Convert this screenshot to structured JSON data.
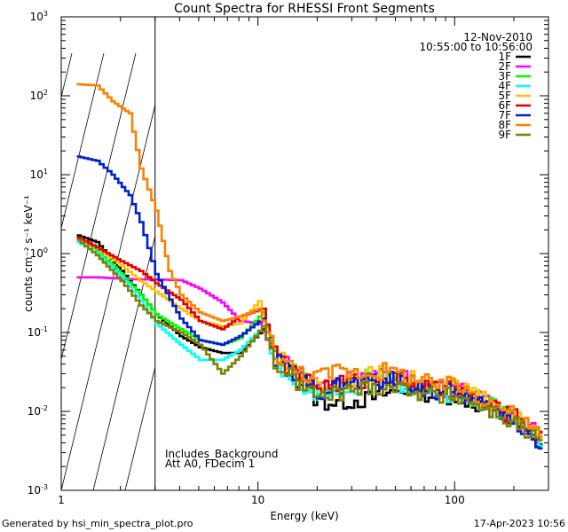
{
  "chart_data": {
    "type": "line",
    "title": "Count Spectra for RHESSI Front Segments",
    "date": "12-Nov-2010",
    "time_range": "10:55:00 to 10:56:00",
    "xlabel": "Energy (keV)",
    "ylabel": "counts cm⁻² s⁻¹ keV⁻¹",
    "xscale": "log",
    "yscale": "log",
    "xlim": [
      1,
      300
    ],
    "ylim": [
      0.001,
      1000
    ],
    "x_ticks": [
      {
        "v": 1,
        "label": "1"
      },
      {
        "v": 10,
        "label": "10"
      },
      {
        "v": 100,
        "label": "100"
      }
    ],
    "y_ticks": [
      {
        "v": 0.001,
        "base": "10",
        "exp": "-3"
      },
      {
        "v": 0.01,
        "base": "10",
        "exp": "-2"
      },
      {
        "v": 0.1,
        "base": "10",
        "exp": "-1"
      },
      {
        "v": 1,
        "base": "10",
        "exp": "0"
      },
      {
        "v": 10,
        "base": "10",
        "exp": "1"
      },
      {
        "v": 100,
        "base": "10",
        "exp": "2"
      },
      {
        "v": 1000,
        "base": "10",
        "exp": "3"
      }
    ],
    "hatch_region": {
      "xmin": 1,
      "xmax": 3
    },
    "annotation_lines": [
      "Includes_Background",
      "Att A0, FDecim 1"
    ],
    "legend_position": "top-right",
    "series": [
      {
        "name": "1F",
        "color": "#000000",
        "offset": 0.005,
        "points": [
          [
            1.2,
            1.7
          ],
          [
            1.5,
            1.4
          ],
          [
            2.0,
            0.6
          ],
          [
            2.5,
            0.3
          ],
          [
            3.0,
            0.17
          ],
          [
            4.0,
            0.09
          ],
          [
            5.0,
            0.065
          ],
          [
            6.5,
            0.055
          ],
          [
            8.0,
            0.055
          ],
          [
            10.5,
            0.11
          ],
          [
            12.0,
            0.045
          ],
          [
            15.0,
            0.028
          ],
          [
            20.0,
            0.013
          ],
          [
            25.0,
            0.013
          ],
          [
            35.0,
            0.014
          ],
          [
            45.0,
            0.017
          ],
          [
            60.0,
            0.019
          ],
          [
            80.0,
            0.015
          ],
          [
            100.0,
            0.016
          ],
          [
            150.0,
            0.01
          ],
          [
            200.0,
            0.007
          ],
          [
            280.0,
            0.0035
          ]
        ]
      },
      {
        "name": "2F",
        "color": "#ff00ff",
        "offset": 0.035,
        "points": [
          [
            1.2,
            0.5
          ],
          [
            1.5,
            0.5
          ],
          [
            2.0,
            0.48
          ],
          [
            2.5,
            0.47
          ],
          [
            3.0,
            0.47
          ],
          [
            4.0,
            0.46
          ],
          [
            5.0,
            0.36
          ],
          [
            6.5,
            0.24
          ],
          [
            8.0,
            0.14
          ],
          [
            10.0,
            0.13
          ],
          [
            12.0,
            0.05
          ],
          [
            15.0,
            0.03
          ],
          [
            20.0,
            0.02
          ],
          [
            25.0,
            0.023
          ],
          [
            35.0,
            0.026
          ],
          [
            45.0,
            0.025
          ],
          [
            60.0,
            0.023
          ],
          [
            80.0,
            0.017
          ],
          [
            100.0,
            0.019
          ],
          [
            150.0,
            0.011
          ],
          [
            200.0,
            0.008
          ],
          [
            280.0,
            0.004
          ]
        ]
      },
      {
        "name": "3F",
        "color": "#00ff00",
        "offset": 0.025,
        "points": [
          [
            1.2,
            1.6
          ],
          [
            1.5,
            1.1
          ],
          [
            2.0,
            0.55
          ],
          [
            2.5,
            0.3
          ],
          [
            3.0,
            0.17
          ],
          [
            4.0,
            0.11
          ],
          [
            5.0,
            0.08
          ],
          [
            6.5,
            0.07
          ],
          [
            8.0,
            0.085
          ],
          [
            10.5,
            0.18
          ],
          [
            12.0,
            0.05
          ],
          [
            15.0,
            0.03
          ],
          [
            20.0,
            0.018
          ],
          [
            25.0,
            0.02
          ],
          [
            35.0,
            0.024
          ],
          [
            45.0,
            0.025
          ],
          [
            60.0,
            0.022
          ],
          [
            80.0,
            0.017
          ],
          [
            100.0,
            0.018
          ],
          [
            150.0,
            0.011
          ],
          [
            200.0,
            0.008
          ],
          [
            280.0,
            0.004
          ]
        ]
      },
      {
        "name": "4F",
        "color": "#00ffff",
        "offset": 0.01,
        "points": [
          [
            1.2,
            1.4
          ],
          [
            1.5,
            1.0
          ],
          [
            2.0,
            0.5
          ],
          [
            2.5,
            0.25
          ],
          [
            3.0,
            0.13
          ],
          [
            4.0,
            0.07
          ],
          [
            5.0,
            0.045
          ],
          [
            6.5,
            0.045
          ],
          [
            8.0,
            0.06
          ],
          [
            10.5,
            0.12
          ],
          [
            12.0,
            0.04
          ],
          [
            15.0,
            0.025
          ],
          [
            20.0,
            0.016
          ],
          [
            25.0,
            0.018
          ],
          [
            35.0,
            0.021
          ],
          [
            45.0,
            0.022
          ],
          [
            60.0,
            0.02
          ],
          [
            80.0,
            0.016
          ],
          [
            100.0,
            0.017
          ],
          [
            150.0,
            0.01
          ],
          [
            200.0,
            0.007
          ],
          [
            280.0,
            0.0035
          ]
        ]
      },
      {
        "name": "5F",
        "color": "#ffc000",
        "offset": 0.03,
        "points": [
          [
            1.2,
            1.5
          ],
          [
            1.5,
            1.2
          ],
          [
            2.0,
            0.7
          ],
          [
            2.5,
            0.45
          ],
          [
            3.0,
            0.33
          ],
          [
            4.0,
            0.2
          ],
          [
            5.0,
            0.14
          ],
          [
            6.5,
            0.12
          ],
          [
            8.0,
            0.13
          ],
          [
            10.0,
            0.25
          ],
          [
            12.0,
            0.05
          ],
          [
            15.0,
            0.03
          ],
          [
            20.0,
            0.02
          ],
          [
            25.0,
            0.022
          ],
          [
            35.0,
            0.026
          ],
          [
            45.0,
            0.028
          ],
          [
            60.0,
            0.024
          ],
          [
            80.0,
            0.019
          ],
          [
            100.0,
            0.02
          ],
          [
            150.0,
            0.012
          ],
          [
            200.0,
            0.008
          ],
          [
            280.0,
            0.004
          ]
        ]
      },
      {
        "name": "6F",
        "color": "#e00000",
        "offset": 0.015,
        "points": [
          [
            1.2,
            1.6
          ],
          [
            1.5,
            1.2
          ],
          [
            2.0,
            0.8
          ],
          [
            2.5,
            0.6
          ],
          [
            3.0,
            0.42
          ],
          [
            4.0,
            0.26
          ],
          [
            5.0,
            0.14
          ],
          [
            6.5,
            0.11
          ],
          [
            8.0,
            0.16
          ],
          [
            10.5,
            0.2
          ],
          [
            12.0,
            0.05
          ],
          [
            15.0,
            0.03
          ],
          [
            20.0,
            0.02
          ],
          [
            25.0,
            0.022
          ],
          [
            35.0,
            0.024
          ],
          [
            45.0,
            0.026
          ],
          [
            60.0,
            0.022
          ],
          [
            80.0,
            0.018
          ],
          [
            100.0,
            0.018
          ],
          [
            150.0,
            0.011
          ],
          [
            200.0,
            0.008
          ],
          [
            280.0,
            0.004
          ]
        ]
      },
      {
        "name": "7F",
        "color": "#0020d0",
        "offset": 0.02,
        "points": [
          [
            1.2,
            17
          ],
          [
            1.5,
            15
          ],
          [
            1.8,
            10
          ],
          [
            2.2,
            5.5
          ],
          [
            2.5,
            2.5
          ],
          [
            3.0,
            0.55
          ],
          [
            4.0,
            0.15
          ],
          [
            5.0,
            0.08
          ],
          [
            6.5,
            0.07
          ],
          [
            8.0,
            0.09
          ],
          [
            10.5,
            0.15
          ],
          [
            12.0,
            0.045
          ],
          [
            15.0,
            0.028
          ],
          [
            20.0,
            0.017
          ],
          [
            25.0,
            0.02
          ],
          [
            35.0,
            0.023
          ],
          [
            45.0,
            0.024
          ],
          [
            60.0,
            0.021
          ],
          [
            80.0,
            0.016
          ],
          [
            100.0,
            0.017
          ],
          [
            150.0,
            0.01
          ],
          [
            200.0,
            0.007
          ],
          [
            280.0,
            0.0035
          ]
        ]
      },
      {
        "name": "8F",
        "color": "#ff8000",
        "offset": 0.04,
        "points": [
          [
            1.2,
            140
          ],
          [
            1.5,
            135
          ],
          [
            1.8,
            85
          ],
          [
            2.2,
            60
          ],
          [
            2.5,
            12
          ],
          [
            3.0,
            3.5
          ],
          [
            3.5,
            0.6
          ],
          [
            4.0,
            0.3
          ],
          [
            5.0,
            0.18
          ],
          [
            6.5,
            0.14
          ],
          [
            8.0,
            0.16
          ],
          [
            10.0,
            0.2
          ],
          [
            12.0,
            0.05
          ],
          [
            15.0,
            0.03
          ],
          [
            20.0,
            0.025
          ],
          [
            25.0,
            0.03
          ],
          [
            35.0,
            0.028
          ],
          [
            45.0,
            0.03
          ],
          [
            60.0,
            0.024
          ],
          [
            80.0,
            0.019
          ],
          [
            100.0,
            0.02
          ],
          [
            150.0,
            0.012
          ],
          [
            200.0,
            0.008
          ],
          [
            280.0,
            0.004
          ]
        ]
      },
      {
        "name": "9F",
        "color": "#808000",
        "offset": 0.0,
        "points": [
          [
            1.2,
            1.5
          ],
          [
            1.5,
            0.95
          ],
          [
            2.0,
            0.45
          ],
          [
            2.5,
            0.22
          ],
          [
            3.0,
            0.14
          ],
          [
            4.0,
            0.1
          ],
          [
            5.0,
            0.07
          ],
          [
            6.5,
            0.03
          ],
          [
            8.0,
            0.05
          ],
          [
            10.5,
            0.12
          ],
          [
            12.0,
            0.04
          ],
          [
            15.0,
            0.025
          ],
          [
            20.0,
            0.015
          ],
          [
            25.0,
            0.017
          ],
          [
            35.0,
            0.02
          ],
          [
            45.0,
            0.021
          ],
          [
            60.0,
            0.019
          ],
          [
            80.0,
            0.015
          ],
          [
            100.0,
            0.016
          ],
          [
            150.0,
            0.01
          ],
          [
            200.0,
            0.007
          ],
          [
            280.0,
            0.0035
          ]
        ]
      }
    ]
  },
  "footer": {
    "generated_by": "Generated by hsi_min_spectra_plot.pro",
    "timestamp": "17-Apr-2023 10:56"
  }
}
